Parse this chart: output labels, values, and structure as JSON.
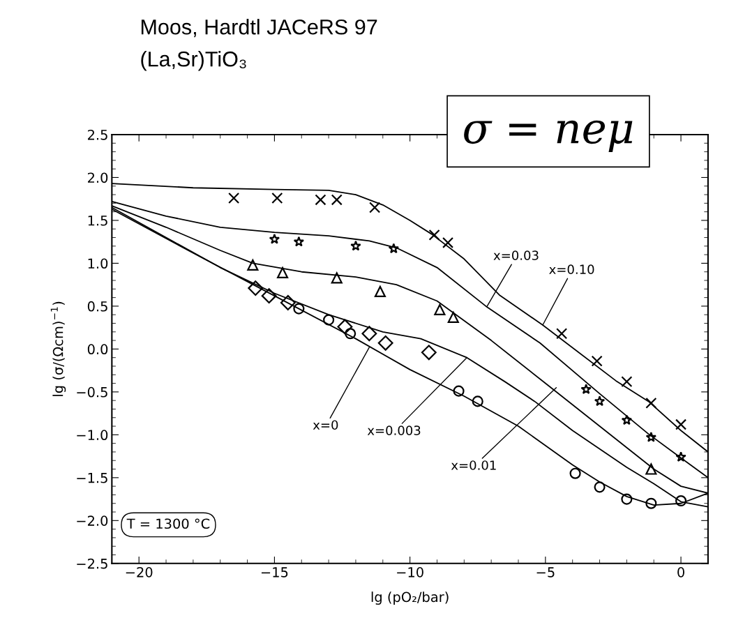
{
  "chart_data": {
    "type": "scatter",
    "title": "Moos, Hardtl JACeRS 97",
    "subtitle": "(La,Sr)TiO₃",
    "xlabel": "lg (pO₂/bar)",
    "ylabel": "lg (σ/(Ωcm)$^{−1}$)",
    "xlim": [
      -21,
      1
    ],
    "ylim": [
      -2.5,
      2.5
    ],
    "xticks": [
      {
        "value": -20,
        "label": "−20"
      },
      {
        "value": -15,
        "label": "−15"
      },
      {
        "value": -10,
        "label": "−10"
      },
      {
        "value": -5,
        "label": "−5"
      },
      0
    ],
    "yticks": [
      {
        "value": -2.5,
        "label": "−2.5"
      },
      {
        "value": -2.0,
        "label": "−2.0"
      },
      {
        "value": -1.5,
        "label": "−1.5"
      },
      {
        "value": -1.0,
        "label": "−1.0"
      },
      {
        "value": -0.5,
        "label": "−0.5"
      },
      {
        "value": 0.0,
        "label": "0.0"
      },
      {
        "value": 0.5,
        "label": "0.5"
      },
      {
        "value": 1.0,
        "label": "1.0"
      },
      {
        "value": 1.5,
        "label": "1.5"
      },
      {
        "value": 2.0,
        "label": "2.0"
      },
      {
        "value": 2.5,
        "label": "2.5"
      }
    ],
    "grid": false,
    "series": [
      {
        "marker": "cross",
        "color": "#000000",
        "x": [
          -16.5,
          -14.9,
          -13.3,
          -12.7,
          -11.3,
          -9.1,
          -8.6,
          -4.4,
          -3.1,
          -2.0,
          -1.1,
          0
        ],
        "values": [
          1.76,
          1.76,
          1.74,
          1.74,
          1.65,
          1.33,
          1.24,
          0.18,
          -0.14,
          -0.38,
          -0.63,
          -0.88
        ]
      },
      {
        "marker": "star",
        "color": "#000000",
        "x": [
          -15,
          -14.1,
          -12,
          -10.6,
          -3.5,
          -3.0,
          -2.0,
          -1.1,
          0
        ],
        "values": [
          1.28,
          1.25,
          1.2,
          1.17,
          -0.47,
          -0.61,
          -0.83,
          -1.03,
          -1.26
        ]
      },
      {
        "marker": "triangle",
        "color": "#000000",
        "x": [
          -15.8,
          -14.7,
          -12.7,
          -11.1,
          -8.9,
          -8.4,
          -1.1
        ],
        "values": [
          0.98,
          0.89,
          0.83,
          0.67,
          0.46,
          0.37,
          -1.4
        ]
      },
      {
        "marker": "diamond",
        "color": "#000000",
        "x": [
          -15.7,
          -15.2,
          -14.5,
          -12.4,
          -11.5,
          -10.9,
          -9.3
        ],
        "values": [
          0.71,
          0.62,
          0.54,
          0.26,
          0.18,
          0.07,
          -0.04
        ]
      },
      {
        "marker": "circle",
        "color": "#000000",
        "x": [
          -14.1,
          -13.0,
          -12.2,
          -8.2,
          -7.5,
          -3.9,
          -3.0,
          -2.0,
          -1.1,
          0
        ],
        "values": [
          0.47,
          0.34,
          0.18,
          -0.49,
          -0.61,
          -1.45,
          -1.61,
          -1.75,
          -1.8,
          -1.77
        ]
      },
      {
        "type": "line",
        "marker": "none",
        "color": "#000000",
        "x": [
          -21,
          -18,
          -15,
          -13,
          -12,
          -11,
          -10,
          -9.2,
          -8,
          -6.7,
          -5.1,
          -2.4,
          -1.2,
          0,
          1
        ],
        "values": [
          1.93,
          1.88,
          1.86,
          1.85,
          1.8,
          1.68,
          1.5,
          1.34,
          1.05,
          0.63,
          0.28,
          -0.37,
          -0.61,
          -0.95,
          -1.2
        ]
      },
      {
        "type": "line",
        "marker": "none",
        "color": "#000000",
        "x": [
          -21,
          -19,
          -17,
          -15,
          -13,
          -11.5,
          -10.5,
          -9,
          -7.2,
          -5.2,
          -3,
          -1.2,
          0,
          1
        ],
        "values": [
          1.72,
          1.55,
          1.42,
          1.36,
          1.32,
          1.26,
          1.18,
          0.95,
          0.5,
          0.07,
          -0.52,
          -0.99,
          -1.27,
          -1.5
        ]
      },
      {
        "type": "line",
        "marker": "none",
        "color": "#000000",
        "x": [
          -21,
          -19,
          -17,
          -15.8,
          -14,
          -12,
          -10.5,
          -9,
          -7,
          -5,
          -3,
          -1,
          0,
          1
        ],
        "values": [
          1.67,
          1.42,
          1.15,
          1.0,
          0.9,
          0.84,
          0.75,
          0.56,
          0.1,
          -0.4,
          -0.9,
          -1.4,
          -1.6,
          -1.68
        ]
      },
      {
        "type": "line",
        "marker": "none",
        "color": "#000000",
        "x": [
          -21,
          -19,
          -17,
          -15,
          -13,
          -11,
          -9.6,
          -7.9,
          -6.5,
          -5.4,
          -4,
          -2,
          -1,
          0,
          1
        ],
        "values": [
          1.65,
          1.3,
          0.95,
          0.65,
          0.4,
          0.2,
          0.12,
          -0.1,
          -0.38,
          -0.61,
          -0.95,
          -1.38,
          -1.57,
          -1.78,
          -1.84
        ]
      },
      {
        "type": "line",
        "marker": "none",
        "color": "#000000",
        "x": [
          -21,
          -18,
          -15,
          -12,
          -10,
          -8,
          -6,
          -4,
          -3,
          -2,
          -1,
          0,
          1
        ],
        "values": [
          1.63,
          1.12,
          0.62,
          0.12,
          -0.24,
          -0.55,
          -0.9,
          -1.35,
          -1.55,
          -1.72,
          -1.82,
          -1.8,
          -1.68
        ]
      }
    ],
    "annotations": [
      {
        "text": "x=0",
        "x": -11.5,
        "y": 0.02
      },
      {
        "text": "x=0.003",
        "x": -7.9,
        "y": -0.1
      },
      {
        "text": "x=0.01",
        "x": -4.6,
        "y": -0.45
      },
      {
        "text": "x=0.03",
        "x": -7.15,
        "y": 0.5
      },
      {
        "text": "x=0.10",
        "x": -5.1,
        "y": 0.28
      },
      "T = 1300 °C",
      "σ = neμ"
    ]
  }
}
